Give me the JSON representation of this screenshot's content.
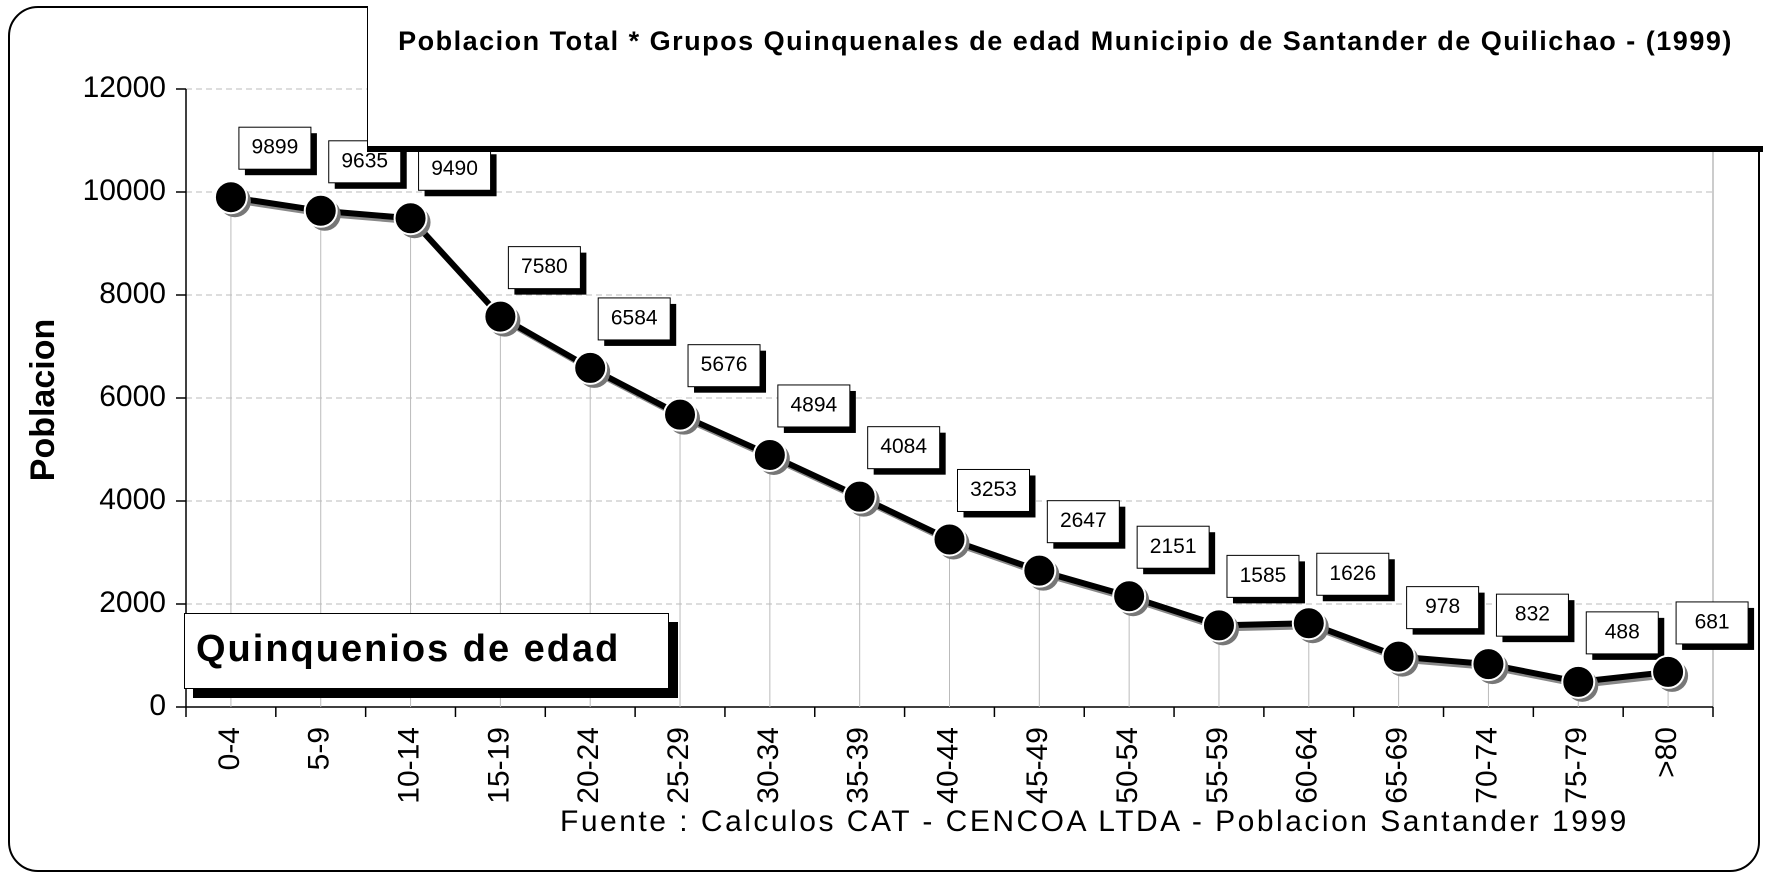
{
  "chart_data": {
    "type": "line",
    "title": "Poblacion Total * Grupos Quinquenales de edad  Municipio de Santander de Quilichao - (1999)",
    "y_label": "Poblacion",
    "x_label": "Quinquenios de edad",
    "source": "Fuente : Calculos CAT - CENCOA LTDA - Poblacion Santander  1999",
    "categories": [
      "0-4",
      "5-9",
      "10-14",
      "15-19",
      "20-24",
      "25-29",
      "30-34",
      "35-39",
      "40-44",
      "45-49",
      "50-54",
      "55-59",
      "60-64",
      "65-69",
      "70-74",
      "75-79",
      ">80"
    ],
    "values": [
      9899,
      9635,
      9490,
      7580,
      6584,
      5676,
      4894,
      4084,
      3253,
      2647,
      2151,
      1585,
      1626,
      978,
      832,
      488,
      681
    ],
    "color": "#000000",
    "ylim": [
      0,
      12000
    ],
    "yticks": [
      0,
      2000,
      4000,
      6000,
      8000,
      10000,
      12000
    ],
    "grid": true
  }
}
